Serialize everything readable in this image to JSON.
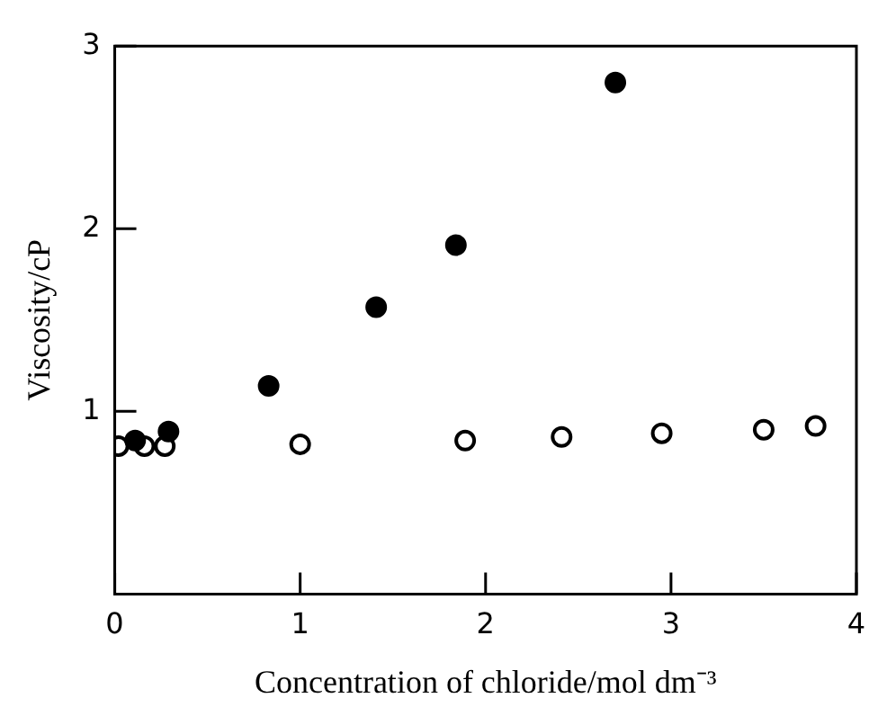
{
  "chart_data": {
    "type": "scatter",
    "xlabel": "Concentration of chloride/mol dm⁻³",
    "ylabel": "Viscosity/cP",
    "xlim": [
      0,
      4
    ],
    "xticks": [
      0,
      1,
      2,
      3,
      4
    ],
    "ylim": [
      0,
      3
    ],
    "yticks": [
      {
        "value": 0,
        "label": null
      },
      1,
      2,
      3
    ],
    "marker": "circle",
    "grid": false,
    "legend": false,
    "series": [
      {
        "color": "#000000",
        "x": [
          0.11,
          0.29,
          0.83,
          1.41,
          1.84,
          2.7
        ],
        "values": [
          0.84,
          0.89,
          1.14,
          1.57,
          1.91,
          2.8
        ]
      },
      {
        "color": "#ffffff",
        "x": [
          0.02,
          0.16,
          0.27,
          1.0,
          1.89,
          2.41,
          2.95,
          3.5,
          3.78
        ],
        "values": [
          0.81,
          0.81,
          0.81,
          0.82,
          0.84,
          0.86,
          0.88,
          0.9,
          0.92
        ]
      }
    ]
  }
}
